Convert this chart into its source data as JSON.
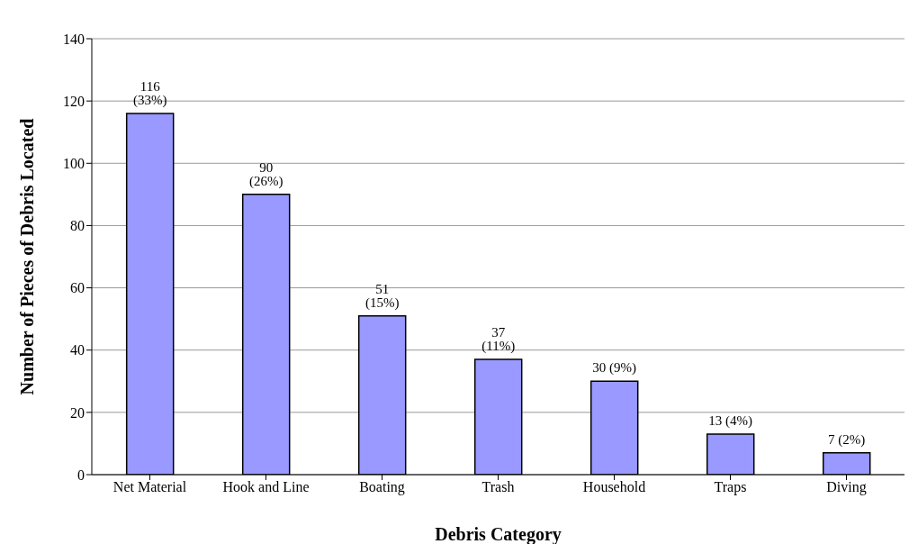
{
  "chart_data": {
    "type": "bar",
    "xlabel": "Debris Category",
    "ylabel": "Number of Pieces of Debris Located",
    "categories": [
      "Net Material",
      "Hook and Line",
      "Boating",
      "Trash",
      "Household",
      "Traps",
      "Diving"
    ],
    "values": [
      116,
      90,
      51,
      37,
      30,
      13,
      7
    ],
    "value_labels": [
      "116 (33%)",
      "90 (26%)",
      "51 (15%)",
      "37 (11%)",
      "30 (9%)",
      "13 (4%)",
      "7 (2%)"
    ],
    "color": "#9999ff",
    "ylim": [
      0,
      140
    ],
    "yticks": [
      0,
      20,
      40,
      60,
      80,
      100,
      120,
      140
    ],
    "grid": "y"
  }
}
